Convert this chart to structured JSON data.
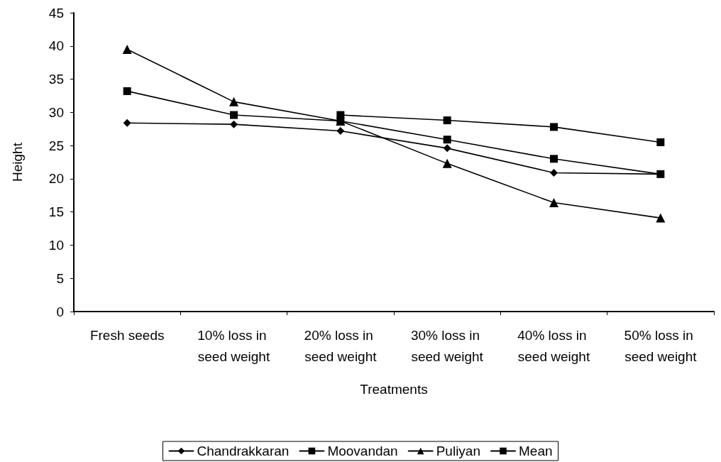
{
  "chart_data": {
    "type": "line",
    "xlabel": "Treatments",
    "ylabel": "Height",
    "categories": [
      "Fresh seeds",
      "10% loss in seed weight",
      "20% loss in seed weight",
      "30% loss in seed weight",
      "40% loss in seed weight",
      "50% loss in seed weight"
    ],
    "series": [
      {
        "name": "Chandrakkaran",
        "color": "#000000",
        "marker": "diamond",
        "values": [
          28.4,
          28.2,
          27.2,
          24.6,
          20.9,
          20.7
        ]
      },
      {
        "name": "Moovandan",
        "color": "#000000",
        "marker": "square",
        "values": [
          null,
          null,
          29.6,
          28.8,
          27.8,
          25.5
        ]
      },
      {
        "name": "Puliyan",
        "color": "#000000",
        "marker": "triangle",
        "values": [
          39.5,
          31.6,
          28.7,
          22.3,
          16.4,
          14.1
        ]
      },
      {
        "name": "Mean",
        "color": "#000000",
        "marker": "square",
        "values": [
          33.2,
          29.6,
          28.7,
          25.9,
          23.0,
          20.7
        ]
      }
    ],
    "ylim": [
      0,
      45
    ],
    "yticks": [
      0,
      5,
      10,
      15,
      20,
      25,
      30,
      35,
      40,
      45
    ],
    "grid": false,
    "legend": "bottom",
    "line_style": "solid"
  }
}
